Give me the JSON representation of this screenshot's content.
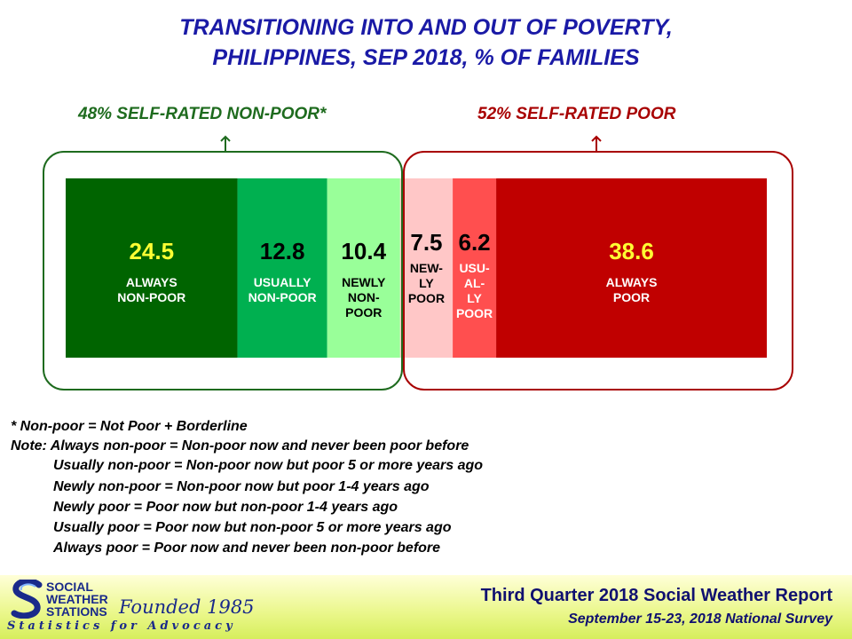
{
  "title": {
    "line1": "TRANSITIONING INTO AND OUT OF POVERTY,",
    "line2": "PHILIPPINES, SEP 2018, % OF FAMILIES"
  },
  "groups": [
    {
      "label": "48% SELF-RATED NON-POOR*",
      "color": "#1e6b1e"
    },
    {
      "label": "52% SELF-RATED POOR",
      "color": "#a80000"
    }
  ],
  "chart_data": {
    "type": "bar",
    "orientation": "horizontal-stacked",
    "xlim": [
      0,
      100
    ],
    "segments": [
      {
        "value": 24.5,
        "value_text": "24.5",
        "label_lines": [
          "ALWAYS",
          "NON-POOR"
        ],
        "color": "#006400",
        "value_color": "#ffff33",
        "label_color": "#ffffff"
      },
      {
        "value": 12.8,
        "value_text": "12.8",
        "label_lines": [
          "USUALLY",
          "NON-POOR"
        ],
        "color": "#00b050",
        "value_color": "#000000",
        "label_color": "#ffffff"
      },
      {
        "value": 10.4,
        "value_text": "10.4",
        "label_lines": [
          "NEWLY",
          "NON-",
          "POOR"
        ],
        "color": "#99ff99",
        "value_color": "#000000",
        "label_color": "#000000"
      },
      {
        "value": 7.5,
        "value_text": "7.5",
        "label_lines": [
          "NEW-",
          "LY",
          "POOR"
        ],
        "color": "#ffc7c7",
        "value_color": "#000000",
        "label_color": "#000000"
      },
      {
        "value": 6.2,
        "value_text": "6.2",
        "label_lines": [
          "USU-",
          "AL-",
          "LY",
          "POOR"
        ],
        "color": "#ff4f4f",
        "value_color": "#000000",
        "label_color": "#ffffff"
      },
      {
        "value": 38.6,
        "value_text": "38.6",
        "label_lines": [
          "ALWAYS",
          "POOR"
        ],
        "color": "#c00000",
        "value_color": "#ffff33",
        "label_color": "#ffffff"
      }
    ]
  },
  "notes": {
    "footnote": "* Non-poor = Not Poor + Borderline",
    "note_intro": "Note: Always non-poor = Non-poor now and never been poor before",
    "definitions": [
      "Usually non-poor = Non-poor now but poor 5 or more years ago",
      "Newly non-poor = Non-poor now but poor 1-4 years ago",
      "Newly poor = Poor now but non-poor 1-4 years ago",
      "Usually poor = Poor now but non-poor 5 or more years ago",
      "Always poor = Poor now and never been non-poor before"
    ]
  },
  "footer": {
    "logo_line1": "SOCIAL",
    "logo_line2": "WEATHER",
    "logo_line3": "STATIONS",
    "founded": "Founded 1985",
    "motto": "Statistics for Advocacy",
    "report_title": "Third Quarter 2018 Social Weather Report",
    "report_subtitle": "September 15-23, 2018 National Survey"
  },
  "colors": {
    "title": "#1a1aa6",
    "non_poor_group": "#1e6b1e",
    "poor_group": "#a80000",
    "footer_text": "#101070"
  }
}
